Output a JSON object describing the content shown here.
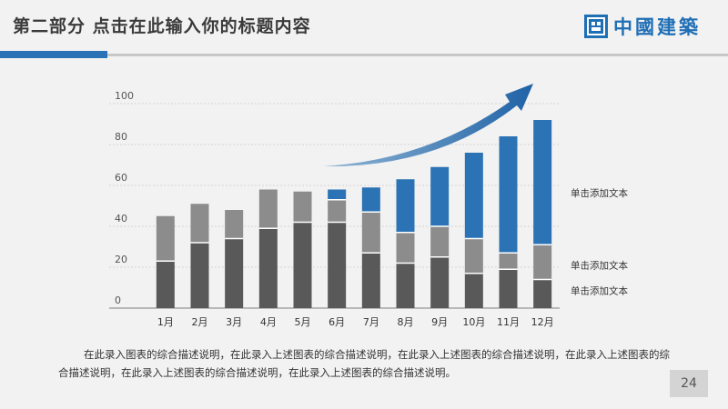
{
  "header": {
    "title": "第二部分  点击在此输入你的标题内容",
    "logo_text": "中國建築",
    "logo_icon": "building-logo-icon",
    "accent_color": "#2a72b5"
  },
  "chart_data": {
    "type": "bar",
    "stacked": true,
    "categories": [
      "1月",
      "2月",
      "3月",
      "4月",
      "5月",
      "6月",
      "7月",
      "8月",
      "9月",
      "10月",
      "11月",
      "12月"
    ],
    "ylim": [
      0,
      100
    ],
    "yticks": [
      0,
      20,
      40,
      60,
      80,
      100
    ],
    "grid": true,
    "series": [
      {
        "color": "#595959",
        "values": [
          23,
          32,
          34,
          39,
          42,
          42,
          27,
          22,
          25,
          17,
          19,
          14
        ]
      },
      {
        "color": "#8c8c8c",
        "values": [
          22,
          19,
          14,
          19,
          15,
          11,
          20,
          15,
          15,
          17,
          8,
          17
        ]
      },
      {
        "color": "#2b73b4",
        "values": [
          0,
          0,
          0,
          0,
          0,
          5,
          12,
          26,
          29,
          42,
          57,
          61
        ]
      }
    ],
    "annotations": [
      "单击添加文本",
      "单击添加文本",
      "单击添加文本"
    ],
    "trend_arrow": true
  },
  "description": "在此录入图表的综合描述说明，在此录入上述图表的综合描述说明，在此录入上述图表的综合描述说明，在此录入上述图表的综合描述说明，在此录入上述图表的综合描述说明，在此录入上述图表的综合描述说明。",
  "page_number": "24"
}
